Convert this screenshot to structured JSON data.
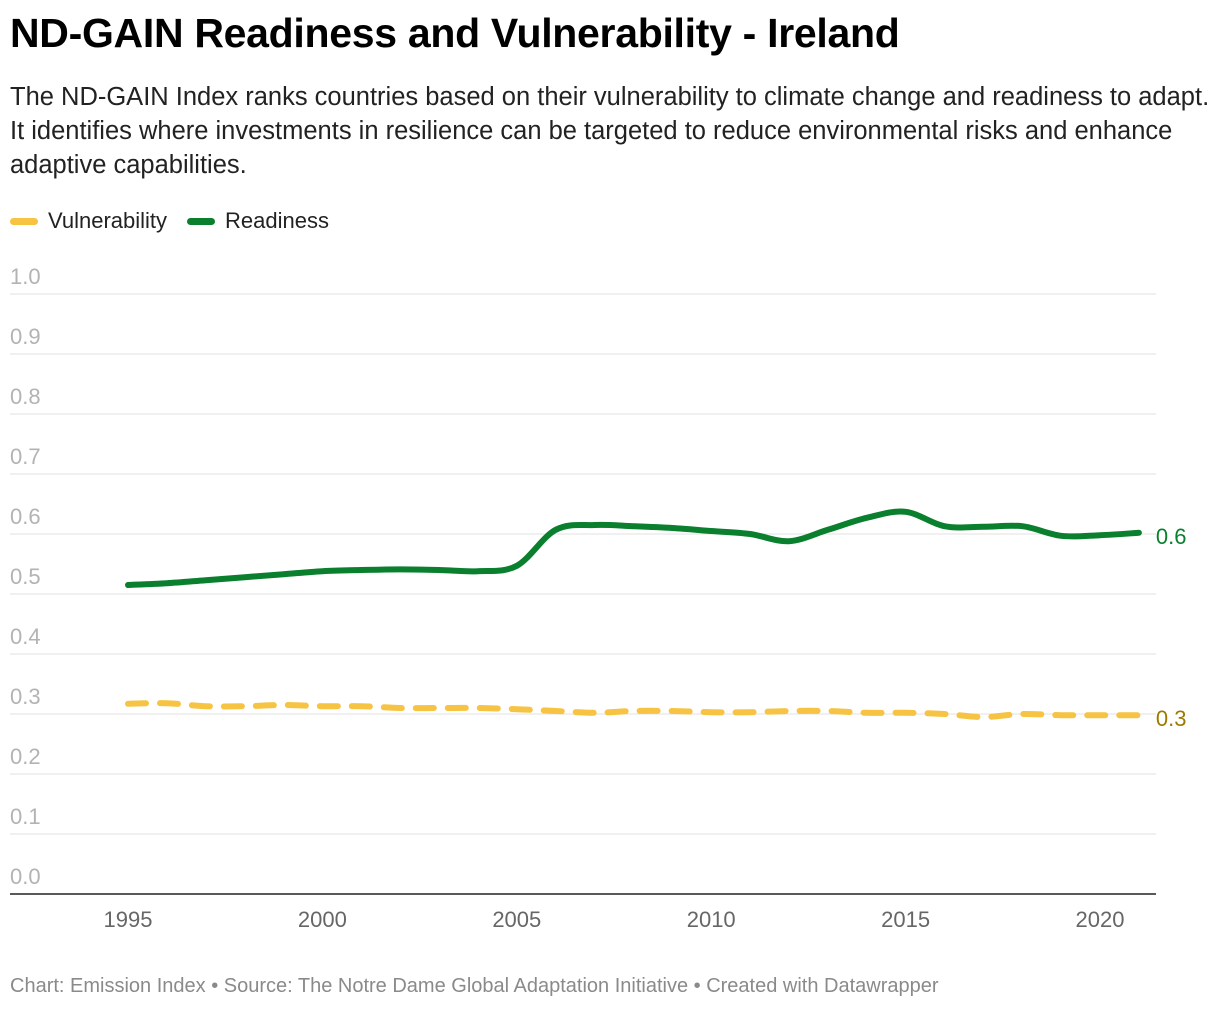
{
  "header": {
    "title": "ND-GAIN Readiness and Vulnerability - Ireland",
    "subtitle": "The ND-GAIN Index ranks countries based on their vulnerability to climate change and readiness to adapt. It identifies where investments in resilience can be targeted to reduce environmental risks and enhance adaptive capabilities."
  },
  "footer": {
    "text": "Chart: Emission Index • Source: The Notre Dame Global Adaptation Initiative • Created with Datawrapper"
  },
  "chart_data": {
    "type": "line",
    "title": "ND-GAIN Readiness and Vulnerability - Ireland",
    "xlabel": "",
    "ylabel": "",
    "xlim": [
      1995,
      2021
    ],
    "ylim": [
      0,
      1
    ],
    "x_ticks": [
      "1995",
      "2000",
      "2005",
      "2010",
      "2015",
      "2020"
    ],
    "y_ticks": [
      "0.0",
      "0.1",
      "0.2",
      "0.3",
      "0.4",
      "0.5",
      "0.6",
      "0.7",
      "0.8",
      "0.9",
      "1.0"
    ],
    "grid": true,
    "legend": "top-left",
    "x": [
      1995,
      1996,
      1997,
      1998,
      1999,
      2000,
      2001,
      2002,
      2003,
      2004,
      2005,
      2006,
      2007,
      2008,
      2009,
      2010,
      2011,
      2012,
      2013,
      2014,
      2015,
      2016,
      2017,
      2018,
      2019,
      2020,
      2021
    ],
    "series": [
      {
        "name": "Vulnerability",
        "color": "#f6c342",
        "label_color": "#9c7a00",
        "style": "dashed",
        "end_label": "0.3",
        "values": [
          0.317,
          0.318,
          0.313,
          0.313,
          0.315,
          0.313,
          0.313,
          0.31,
          0.31,
          0.31,
          0.308,
          0.305,
          0.302,
          0.305,
          0.305,
          0.303,
          0.303,
          0.305,
          0.305,
          0.302,
          0.302,
          0.3,
          0.295,
          0.3,
          0.298,
          0.298,
          0.298
        ]
      },
      {
        "name": "Readiness",
        "color": "#0a7f2e",
        "label_color": "#0a7f2e",
        "style": "solid",
        "end_label": "0.6",
        "values": [
          0.515,
          0.518,
          0.523,
          0.528,
          0.533,
          0.538,
          0.54,
          0.541,
          0.54,
          0.538,
          0.547,
          0.607,
          0.615,
          0.613,
          0.61,
          0.605,
          0.6,
          0.588,
          0.607,
          0.627,
          0.637,
          0.613,
          0.612,
          0.613,
          0.597,
          0.598,
          0.602
        ]
      }
    ]
  }
}
